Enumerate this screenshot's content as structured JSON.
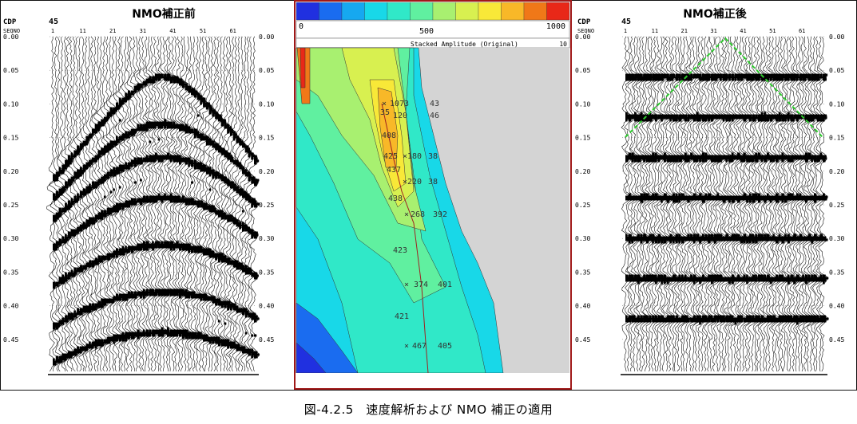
{
  "left_panel": {
    "title": "NMO補正前",
    "cdp_label": "CDP",
    "seqno_label": "SEQNO",
    "cdp_value": "45",
    "trace_ticks": [
      "1",
      "11",
      "21",
      "31",
      "41",
      "51",
      "61"
    ],
    "time_ticks": [
      "0.00",
      "0.05",
      "0.10",
      "0.15",
      "0.20",
      "0.25",
      "0.30",
      "0.35",
      "0.40",
      "0.45"
    ]
  },
  "right_panel": {
    "title": "NMO補正後",
    "cdp_label": "CDP",
    "seqno_label": "SEQNO",
    "cdp_value": "45",
    "trace_ticks": [
      "1",
      "11",
      "21",
      "31",
      "41",
      "51",
      "61"
    ],
    "time_ticks": [
      "0.00",
      "0.05",
      "0.10",
      "0.15",
      "0.20",
      "0.25",
      "0.30",
      "0.35",
      "0.40",
      "0.45"
    ],
    "mute_line_color": "#2ecc2e"
  },
  "center_panel": {
    "scale_min": "0",
    "scale_mid": "500",
    "scale_max": "1000",
    "scale_label": "Stacked Amplitude (Original)",
    "scale_right_value": "10",
    "colorbar_colors": [
      "#2030e0",
      "#1a6cf0",
      "#16a8f0",
      "#18d8e8",
      "#30e8c8",
      "#60f0a0",
      "#a8f070",
      "#d8f050",
      "#f8e838",
      "#f8b828",
      "#f07818",
      "#e82818"
    ],
    "border_color": "#a01818",
    "picks": [
      {
        "label": "1073"
      },
      {
        "label": "43"
      },
      {
        "label": "35"
      },
      {
        "label": "120"
      },
      {
        "label": "46"
      },
      {
        "label": "408"
      },
      {
        "label": "425"
      },
      {
        "label": "180"
      },
      {
        "label": "38"
      },
      {
        "label": "437"
      },
      {
        "label": "220"
      },
      {
        "label": "38"
      },
      {
        "label": "438"
      },
      {
        "label": "268"
      },
      {
        "label": "392"
      },
      {
        "label": "423"
      },
      {
        "label": "374"
      },
      {
        "label": "401"
      },
      {
        "label": "421"
      },
      {
        "label": "467"
      },
      {
        "label": "405"
      }
    ]
  },
  "caption": "図-4.2.5　速度解析および NMO 補正の適用"
}
